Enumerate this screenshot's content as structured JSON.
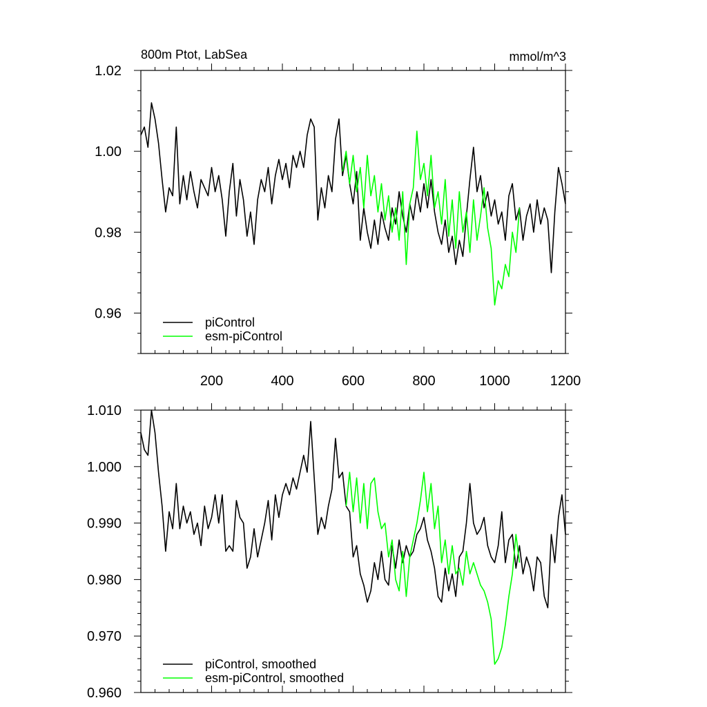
{
  "chart_data": [
    {
      "type": "line",
      "title": "800m Ptot, LabSea",
      "units_label": "mmol/m^3",
      "xlim": [
        0,
        1200
      ],
      "ylim": [
        0.95,
        1.02
      ],
      "xticks": [
        200,
        400,
        600,
        800,
        1000,
        1200
      ],
      "xtick_labels": [
        "200",
        "400",
        "600",
        "800",
        "1000",
        "1200"
      ],
      "yticks": [
        0.96,
        0.98,
        1.0,
        1.02
      ],
      "ytick_labels": [
        "0.96",
        "0.98",
        "1.00",
        "1.02"
      ],
      "legend_placement": "bottom-left",
      "series": [
        {
          "name": "piControl",
          "color": "#000000",
          "x": [
            0,
            10,
            20,
            30,
            40,
            50,
            60,
            70,
            80,
            90,
            100,
            110,
            120,
            130,
            140,
            150,
            160,
            170,
            180,
            190,
            200,
            210,
            220,
            230,
            240,
            250,
            260,
            270,
            280,
            290,
            300,
            310,
            320,
            330,
            340,
            350,
            360,
            370,
            380,
            390,
            400,
            410,
            420,
            430,
            440,
            450,
            460,
            470,
            480,
            490,
            500,
            510,
            520,
            530,
            540,
            550,
            560,
            570,
            580,
            590,
            600,
            610,
            620,
            630,
            640,
            650,
            660,
            670,
            680,
            690,
            700,
            710,
            720,
            730,
            740,
            750,
            760,
            770,
            780,
            790,
            800,
            810,
            820,
            830,
            840,
            850,
            860,
            870,
            880,
            890,
            900,
            910,
            920,
            930,
            940,
            950,
            960,
            970,
            980,
            990,
            1000,
            1010,
            1020,
            1030,
            1040,
            1050,
            1060,
            1070,
            1080,
            1090,
            1100,
            1110,
            1120,
            1130,
            1140,
            1150,
            1160,
            1170,
            1180,
            1190,
            1200
          ],
          "y": [
            1.004,
            1.006,
            1.001,
            1.012,
            1.008,
            1.002,
            0.993,
            0.985,
            0.991,
            0.989,
            1.006,
            0.987,
            0.994,
            0.988,
            0.995,
            0.99,
            0.986,
            0.993,
            0.991,
            0.989,
            0.996,
            0.99,
            0.994,
            0.988,
            0.979,
            0.99,
            0.997,
            0.984,
            0.993,
            0.988,
            0.979,
            0.985,
            0.977,
            0.988,
            0.993,
            0.99,
            0.996,
            0.987,
            0.994,
            0.998,
            0.993,
            0.997,
            0.991,
            0.999,
            0.996,
            1.0,
            0.996,
            1.004,
            1.008,
            1.006,
            0.983,
            0.991,
            0.986,
            0.994,
            0.99,
            1.003,
            1.008,
            0.994,
            0.999,
            0.992,
            0.987,
            0.995,
            0.978,
            0.986,
            0.98,
            0.976,
            0.983,
            0.977,
            0.985,
            0.981,
            0.978,
            0.986,
            0.982,
            0.99,
            0.984,
            0.98,
            0.987,
            0.983,
            0.99,
            0.985,
            0.992,
            0.986,
            0.993,
            0.985,
            0.98,
            0.977,
            0.983,
            0.975,
            0.979,
            0.972,
            0.978,
            0.974,
            0.984,
            0.993,
            1.001,
            0.99,
            0.994,
            0.986,
            0.99,
            0.984,
            0.988,
            0.982,
            0.985,
            0.978,
            0.989,
            0.992,
            0.983,
            0.986,
            0.978,
            0.984,
            0.987,
            0.98,
            0.988,
            0.982,
            0.986,
            0.983,
            0.97,
            0.985,
            0.996,
            0.992,
            0.987
          ]
        },
        {
          "name": "esm-piControl",
          "color": "#00ff00",
          "x": [
            570,
            580,
            590,
            600,
            610,
            620,
            630,
            640,
            650,
            660,
            670,
            680,
            690,
            700,
            710,
            720,
            730,
            740,
            750,
            760,
            770,
            780,
            790,
            800,
            810,
            820,
            830,
            840,
            850,
            860,
            870,
            880,
            890,
            900,
            910,
            920,
            930,
            940,
            950,
            960,
            970,
            980,
            990,
            1000,
            1010,
            1020,
            1030,
            1040,
            1050,
            1060,
            1070
          ],
          "y": [
            0.995,
            1.0,
            0.992,
            0.999,
            0.99,
            0.996,
            0.986,
            0.999,
            0.989,
            0.994,
            0.985,
            0.992,
            0.983,
            0.989,
            0.98,
            0.986,
            0.978,
            0.99,
            0.972,
            0.987,
            0.991,
            1.005,
            0.993,
            0.997,
            0.989,
            0.999,
            0.986,
            0.99,
            0.982,
            0.993,
            0.979,
            0.988,
            0.976,
            0.99,
            0.98,
            0.985,
            0.975,
            0.988,
            0.978,
            0.984,
            0.991,
            0.981,
            0.976,
            0.962,
            0.968,
            0.966,
            0.972,
            0.969,
            0.98,
            0.975,
            0.986
          ]
        }
      ]
    },
    {
      "type": "line",
      "xlim": [
        0,
        1200
      ],
      "ylim": [
        0.96,
        1.01
      ],
      "xticks": [
        200,
        400,
        600,
        800,
        1000,
        1200
      ],
      "yticks": [
        0.96,
        0.97,
        0.98,
        0.99,
        1.0,
        1.01
      ],
      "ytick_labels": [
        "0.960",
        "0.970",
        "0.980",
        "0.990",
        "1.000",
        "1.010"
      ],
      "legend_placement": "bottom-left",
      "series": [
        {
          "name": "piControl, smoothed",
          "color": "#000000",
          "x": [
            0,
            10,
            20,
            30,
            40,
            50,
            60,
            70,
            80,
            90,
            100,
            110,
            120,
            130,
            140,
            150,
            160,
            170,
            180,
            190,
            200,
            210,
            220,
            230,
            240,
            250,
            260,
            270,
            280,
            290,
            300,
            310,
            320,
            330,
            340,
            350,
            360,
            370,
            380,
            390,
            400,
            410,
            420,
            430,
            440,
            450,
            460,
            470,
            480,
            490,
            500,
            510,
            520,
            530,
            540,
            550,
            560,
            570,
            580,
            590,
            600,
            610,
            620,
            630,
            640,
            650,
            660,
            670,
            680,
            690,
            700,
            710,
            720,
            730,
            740,
            750,
            760,
            770,
            780,
            790,
            800,
            810,
            820,
            830,
            840,
            850,
            860,
            870,
            880,
            890,
            900,
            910,
            920,
            930,
            940,
            950,
            960,
            970,
            980,
            990,
            1000,
            1010,
            1020,
            1030,
            1040,
            1050,
            1060,
            1070,
            1080,
            1090,
            1100,
            1110,
            1120,
            1130,
            1140,
            1150,
            1160,
            1170,
            1180,
            1190,
            1200
          ],
          "y": [
            1.006,
            1.003,
            1.002,
            1.01,
            1.006,
            0.999,
            0.993,
            0.985,
            0.992,
            0.989,
            0.997,
            0.989,
            0.993,
            0.99,
            0.992,
            0.988,
            0.99,
            0.986,
            0.993,
            0.989,
            0.991,
            0.995,
            0.99,
            0.995,
            0.985,
            0.986,
            0.985,
            0.994,
            0.991,
            0.99,
            0.982,
            0.984,
            0.989,
            0.984,
            0.987,
            0.99,
            0.994,
            0.987,
            0.995,
            0.991,
            0.995,
            0.997,
            0.995,
            0.998,
            0.996,
            0.999,
            1.002,
            0.999,
            1.008,
            0.998,
            0.988,
            0.991,
            0.989,
            0.993,
            0.996,
            1.005,
            0.998,
            0.999,
            0.993,
            0.992,
            0.984,
            0.986,
            0.981,
            0.979,
            0.976,
            0.978,
            0.983,
            0.98,
            0.985,
            0.98,
            0.979,
            0.986,
            0.982,
            0.987,
            0.983,
            0.986,
            0.984,
            0.985,
            0.988,
            0.989,
            0.991,
            0.987,
            0.985,
            0.982,
            0.977,
            0.976,
            0.982,
            0.978,
            0.981,
            0.977,
            0.984,
            0.985,
            0.99,
            0.997,
            0.99,
            0.988,
            0.989,
            0.991,
            0.986,
            0.984,
            0.983,
            0.986,
            0.992,
            0.983,
            0.987,
            0.988,
            0.982,
            0.986,
            0.981,
            0.984,
            0.982,
            0.978,
            0.984,
            0.983,
            0.977,
            0.975,
            0.988,
            0.983,
            0.991,
            0.995,
            0.988
          ]
        },
        {
          "name": "esm-piControl, smoothed",
          "color": "#00ff00",
          "x": [
            580,
            590,
            600,
            610,
            620,
            630,
            640,
            650,
            660,
            670,
            680,
            690,
            700,
            710,
            720,
            730,
            740,
            750,
            760,
            770,
            780,
            790,
            800,
            810,
            820,
            830,
            840,
            850,
            860,
            870,
            880,
            890,
            900,
            910,
            920,
            930,
            940,
            950,
            960,
            970,
            980,
            990,
            1000,
            1010,
            1020,
            1030,
            1040,
            1050,
            1060,
            1070
          ],
          "y": [
            0.993,
            0.999,
            0.992,
            0.998,
            0.99,
            0.997,
            0.989,
            0.997,
            0.998,
            0.992,
            0.989,
            0.99,
            0.984,
            0.987,
            0.98,
            0.978,
            0.985,
            0.977,
            0.984,
            0.987,
            0.99,
            0.994,
            0.999,
            0.992,
            0.997,
            0.989,
            0.993,
            0.983,
            0.987,
            0.981,
            0.986,
            0.981,
            0.982,
            0.979,
            0.985,
            0.981,
            0.983,
            0.981,
            0.979,
            0.978,
            0.976,
            0.973,
            0.965,
            0.966,
            0.968,
            0.972,
            0.977,
            0.981,
            0.988,
            0.983
          ]
        }
      ]
    }
  ]
}
